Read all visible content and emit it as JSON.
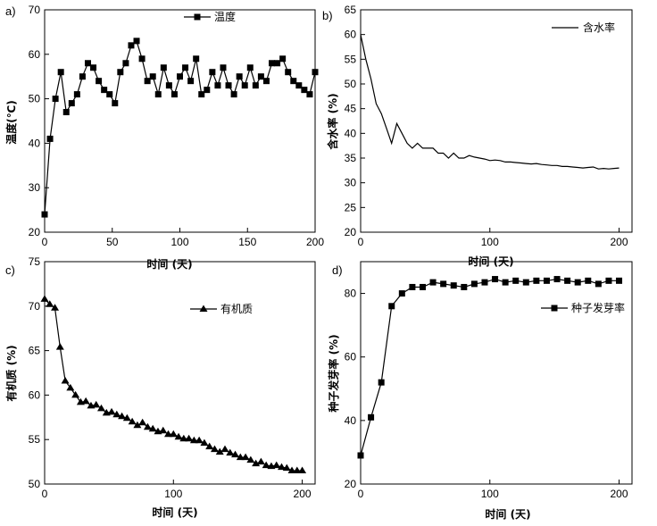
{
  "chart_data": [
    {
      "id": "a",
      "panel_label": "a)",
      "type": "line",
      "marker": "square",
      "xlabel": "时间 (天)",
      "ylabel": "温度(℃)",
      "xlim": [
        0,
        200
      ],
      "ylim": [
        20,
        70
      ],
      "xticks": [
        0,
        50,
        100,
        150,
        200
      ],
      "yticks": [
        20,
        30,
        40,
        50,
        60,
        70
      ],
      "legend": "温度",
      "legend_position": "top-center",
      "series": [
        {
          "name": "温度",
          "x": [
            0,
            4,
            8,
            12,
            16,
            20,
            24,
            28,
            32,
            36,
            40,
            44,
            48,
            52,
            56,
            60,
            64,
            68,
            72,
            76,
            80,
            84,
            88,
            92,
            96,
            100,
            104,
            108,
            112,
            116,
            120,
            124,
            128,
            132,
            136,
            140,
            144,
            148,
            152,
            156,
            160,
            164,
            168,
            172,
            176,
            180,
            184,
            188,
            192,
            196,
            200
          ],
          "y": [
            24,
            41,
            50,
            56,
            47,
            49,
            51,
            55,
            58,
            57,
            54,
            52,
            51,
            49,
            56,
            58,
            62,
            63,
            59,
            54,
            55,
            51,
            57,
            53,
            51,
            55,
            57,
            54,
            59,
            51,
            52,
            56,
            53,
            57,
            53,
            51,
            55,
            53,
            57,
            53,
            55,
            54,
            58,
            58,
            59,
            56,
            54,
            53,
            52,
            51,
            56
          ]
        }
      ]
    },
    {
      "id": "b",
      "panel_label": "b)",
      "type": "line",
      "marker": "none",
      "xlabel": "时间 (天)",
      "ylabel": "含水率 (%)",
      "xlim": [
        0,
        210
      ],
      "ylim": [
        20,
        65
      ],
      "xticks": [
        0,
        100,
        200
      ],
      "yticks": [
        20,
        25,
        30,
        35,
        40,
        45,
        50,
        55,
        60,
        65
      ],
      "legend": "含水率",
      "legend_position": "top-right",
      "series": [
        {
          "name": "含水率",
          "x": [
            0,
            4,
            8,
            12,
            16,
            20,
            24,
            28,
            32,
            36,
            40,
            44,
            48,
            52,
            56,
            60,
            64,
            68,
            72,
            76,
            80,
            84,
            88,
            92,
            96,
            100,
            104,
            108,
            112,
            116,
            120,
            124,
            128,
            132,
            136,
            140,
            144,
            148,
            152,
            156,
            160,
            164,
            168,
            172,
            176,
            180,
            184,
            188,
            192,
            196,
            200
          ],
          "y": [
            60,
            55,
            51,
            46,
            44,
            41,
            38,
            42,
            40,
            38,
            37,
            38,
            37,
            37,
            37,
            36,
            36,
            35,
            36,
            35,
            35,
            35.5,
            35.2,
            35,
            34.8,
            34.5,
            34.6,
            34.5,
            34.2,
            34.2,
            34.1,
            34,
            33.9,
            33.8,
            33.9,
            33.7,
            33.6,
            33.5,
            33.5,
            33.3,
            33.3,
            33.2,
            33.1,
            33,
            33.1,
            33.2,
            32.8,
            32.9,
            32.8,
            32.9,
            33
          ]
        }
      ]
    },
    {
      "id": "c",
      "panel_label": "c)",
      "type": "line",
      "marker": "triangle",
      "xlabel": "时间 (天)",
      "ylabel": "有机质 (%)",
      "xlim": [
        0,
        210
      ],
      "ylim": [
        50,
        75
      ],
      "xticks": [
        0,
        100,
        200
      ],
      "yticks": [
        50,
        55,
        60,
        65,
        70,
        75
      ],
      "legend": "有机质",
      "legend_position": "top-right",
      "series": [
        {
          "name": "有机质",
          "x": [
            0,
            4,
            8,
            12,
            16,
            20,
            24,
            28,
            32,
            36,
            40,
            44,
            48,
            52,
            56,
            60,
            64,
            68,
            72,
            76,
            80,
            84,
            88,
            92,
            96,
            100,
            104,
            108,
            112,
            116,
            120,
            124,
            128,
            132,
            136,
            140,
            144,
            148,
            152,
            156,
            160,
            164,
            168,
            172,
            176,
            180,
            184,
            188,
            192,
            196,
            200
          ],
          "y": [
            70.8,
            70.2,
            69.8,
            65.4,
            61.6,
            60.8,
            60,
            59.2,
            59.3,
            58.8,
            58.9,
            58.5,
            58.0,
            58.1,
            57.8,
            57.6,
            57.4,
            57.0,
            56.6,
            56.9,
            56.4,
            56.2,
            55.9,
            56.0,
            55.6,
            55.6,
            55.3,
            55.1,
            55.1,
            54.9,
            54.9,
            54.6,
            54.2,
            53.9,
            53.6,
            53.9,
            53.5,
            53.3,
            53.0,
            53.0,
            52.7,
            52.3,
            52.5,
            52.1,
            52.0,
            52.1,
            51.9,
            51.8,
            51.5,
            51.5,
            51.5
          ]
        }
      ]
    },
    {
      "id": "d",
      "panel_label": "d)",
      "type": "line",
      "marker": "square",
      "xlabel": "时间 (天)",
      "ylabel": "种子发芽率 (%)",
      "xlim": [
        0,
        210
      ],
      "ylim": [
        20,
        90
      ],
      "xticks": [
        0,
        100,
        200
      ],
      "yticks": [
        20,
        40,
        60,
        80
      ],
      "legend": "种子发芽率",
      "legend_position": "right",
      "series": [
        {
          "name": "种子发芽率",
          "x": [
            0,
            8,
            16,
            24,
            32,
            40,
            48,
            56,
            64,
            72,
            80,
            88,
            96,
            104,
            112,
            120,
            128,
            136,
            144,
            152,
            160,
            168,
            176,
            184,
            192,
            200
          ],
          "y": [
            29,
            41,
            52,
            76,
            80,
            82,
            82,
            83.5,
            83,
            82.5,
            82,
            83,
            83.5,
            84.5,
            83.5,
            84,
            83.5,
            84,
            84,
            84.5,
            84,
            83.5,
            84,
            83,
            84,
            84
          ]
        }
      ]
    }
  ]
}
